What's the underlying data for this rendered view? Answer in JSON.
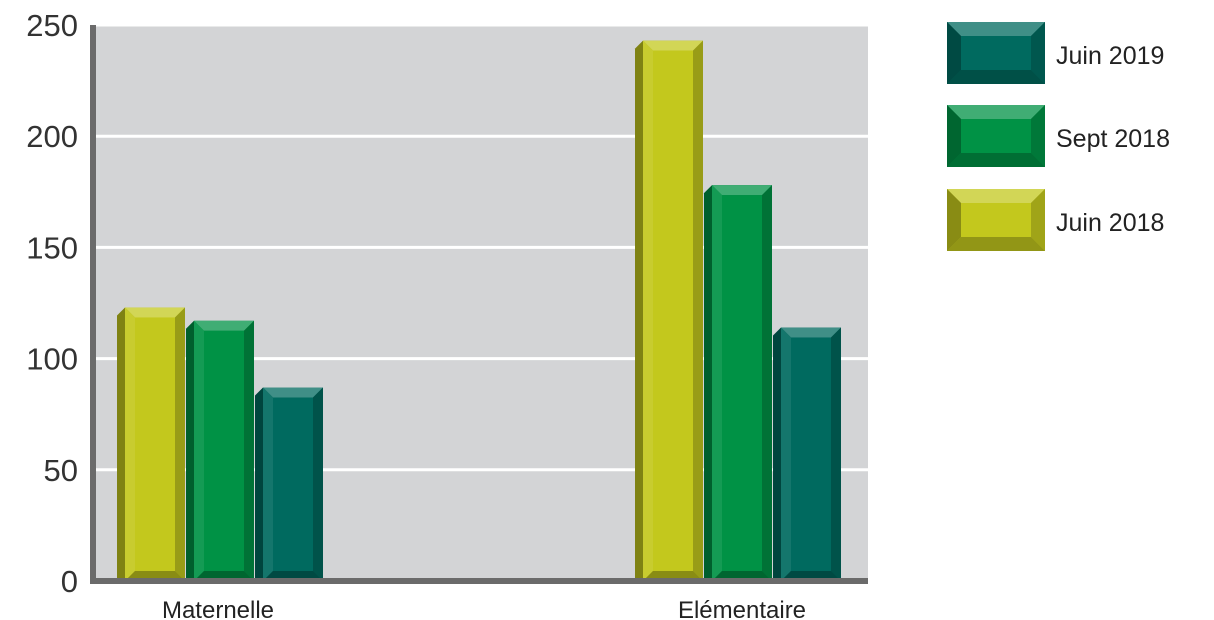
{
  "chart_data": {
    "type": "bar",
    "categories": [
      "Maternelle",
      "Elémentaire"
    ],
    "series": [
      {
        "name": "Juin 2018",
        "values": [
          123,
          243
        ],
        "color": "#c3c81d"
      },
      {
        "name": "Sept 2018",
        "values": [
          117,
          178
        ],
        "color": "#009245"
      },
      {
        "name": "Juin 2019",
        "values": [
          87,
          114
        ],
        "color": "#006a5f"
      }
    ],
    "yticks": [
      "0",
      "50",
      "100",
      "150",
      "200",
      "250"
    ],
    "ylim": [
      0,
      250
    ],
    "grid": true,
    "legend_position": "right",
    "legend_order": [
      "Juin 2019",
      "Sept 2018",
      "Juin 2018"
    ],
    "plot_background": "#d3d4d6"
  }
}
